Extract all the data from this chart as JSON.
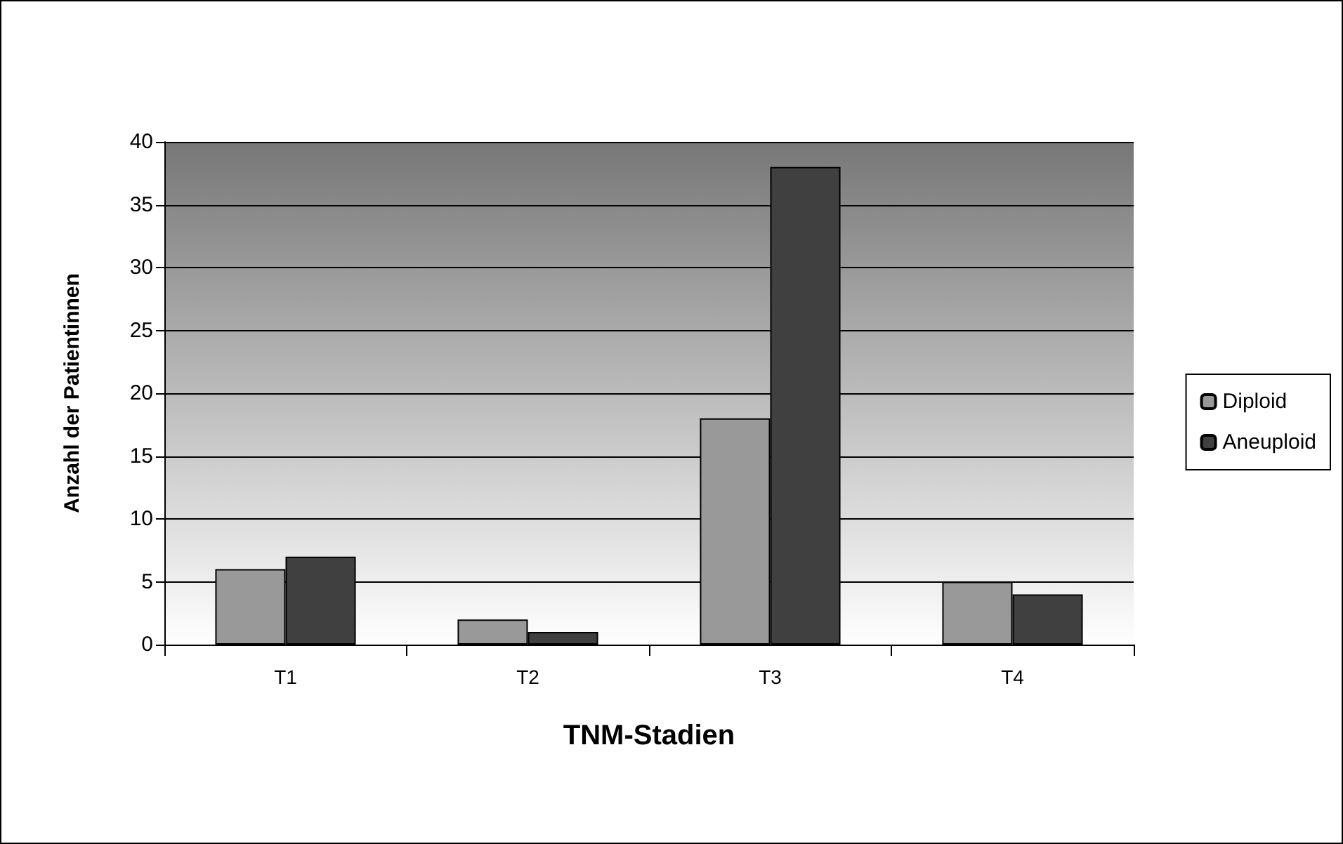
{
  "chart_data": {
    "type": "bar",
    "xlabel": "TNM-Stadien",
    "ylabel": "Anzahl der Patientinnen",
    "categories": [
      "T1",
      "T2",
      "T3",
      "T4"
    ],
    "series": [
      {
        "name": "Diploid",
        "color": "#999999",
        "values": [
          6,
          2,
          18,
          5
        ]
      },
      {
        "name": "Aneuploid",
        "color": "#404040",
        "values": [
          7,
          1,
          38,
          4
        ]
      }
    ],
    "ylim": [
      0,
      40
    ],
    "yticks": [
      0,
      5,
      10,
      15,
      20,
      25,
      30,
      35,
      40
    ],
    "grid": "y",
    "legend": "right"
  }
}
